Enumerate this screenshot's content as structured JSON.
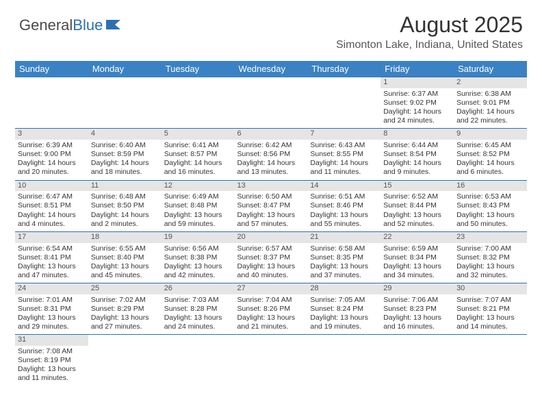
{
  "logo": {
    "text1": "General",
    "text2": "Blue"
  },
  "title": "August 2025",
  "location": "Simonton Lake, Indiana, United States",
  "colors": {
    "header_bg": "#3b82c4",
    "header_text": "#ffffff",
    "daynum_bg": "#e5e5e5",
    "border": "#2e6fb3",
    "body_text": "#333333"
  },
  "weekdays": [
    "Sunday",
    "Monday",
    "Tuesday",
    "Wednesday",
    "Thursday",
    "Friday",
    "Saturday"
  ],
  "weeks": [
    [
      null,
      null,
      null,
      null,
      null,
      {
        "n": "1",
        "sr": "Sunrise: 6:37 AM",
        "ss": "Sunset: 9:02 PM",
        "d1": "Daylight: 14 hours",
        "d2": "and 24 minutes."
      },
      {
        "n": "2",
        "sr": "Sunrise: 6:38 AM",
        "ss": "Sunset: 9:01 PM",
        "d1": "Daylight: 14 hours",
        "d2": "and 22 minutes."
      }
    ],
    [
      {
        "n": "3",
        "sr": "Sunrise: 6:39 AM",
        "ss": "Sunset: 9:00 PM",
        "d1": "Daylight: 14 hours",
        "d2": "and 20 minutes."
      },
      {
        "n": "4",
        "sr": "Sunrise: 6:40 AM",
        "ss": "Sunset: 8:59 PM",
        "d1": "Daylight: 14 hours",
        "d2": "and 18 minutes."
      },
      {
        "n": "5",
        "sr": "Sunrise: 6:41 AM",
        "ss": "Sunset: 8:57 PM",
        "d1": "Daylight: 14 hours",
        "d2": "and 16 minutes."
      },
      {
        "n": "6",
        "sr": "Sunrise: 6:42 AM",
        "ss": "Sunset: 8:56 PM",
        "d1": "Daylight: 14 hours",
        "d2": "and 13 minutes."
      },
      {
        "n": "7",
        "sr": "Sunrise: 6:43 AM",
        "ss": "Sunset: 8:55 PM",
        "d1": "Daylight: 14 hours",
        "d2": "and 11 minutes."
      },
      {
        "n": "8",
        "sr": "Sunrise: 6:44 AM",
        "ss": "Sunset: 8:54 PM",
        "d1": "Daylight: 14 hours",
        "d2": "and 9 minutes."
      },
      {
        "n": "9",
        "sr": "Sunrise: 6:45 AM",
        "ss": "Sunset: 8:52 PM",
        "d1": "Daylight: 14 hours",
        "d2": "and 6 minutes."
      }
    ],
    [
      {
        "n": "10",
        "sr": "Sunrise: 6:47 AM",
        "ss": "Sunset: 8:51 PM",
        "d1": "Daylight: 14 hours",
        "d2": "and 4 minutes."
      },
      {
        "n": "11",
        "sr": "Sunrise: 6:48 AM",
        "ss": "Sunset: 8:50 PM",
        "d1": "Daylight: 14 hours",
        "d2": "and 2 minutes."
      },
      {
        "n": "12",
        "sr": "Sunrise: 6:49 AM",
        "ss": "Sunset: 8:48 PM",
        "d1": "Daylight: 13 hours",
        "d2": "and 59 minutes."
      },
      {
        "n": "13",
        "sr": "Sunrise: 6:50 AM",
        "ss": "Sunset: 8:47 PM",
        "d1": "Daylight: 13 hours",
        "d2": "and 57 minutes."
      },
      {
        "n": "14",
        "sr": "Sunrise: 6:51 AM",
        "ss": "Sunset: 8:46 PM",
        "d1": "Daylight: 13 hours",
        "d2": "and 55 minutes."
      },
      {
        "n": "15",
        "sr": "Sunrise: 6:52 AM",
        "ss": "Sunset: 8:44 PM",
        "d1": "Daylight: 13 hours",
        "d2": "and 52 minutes."
      },
      {
        "n": "16",
        "sr": "Sunrise: 6:53 AM",
        "ss": "Sunset: 8:43 PM",
        "d1": "Daylight: 13 hours",
        "d2": "and 50 minutes."
      }
    ],
    [
      {
        "n": "17",
        "sr": "Sunrise: 6:54 AM",
        "ss": "Sunset: 8:41 PM",
        "d1": "Daylight: 13 hours",
        "d2": "and 47 minutes."
      },
      {
        "n": "18",
        "sr": "Sunrise: 6:55 AM",
        "ss": "Sunset: 8:40 PM",
        "d1": "Daylight: 13 hours",
        "d2": "and 45 minutes."
      },
      {
        "n": "19",
        "sr": "Sunrise: 6:56 AM",
        "ss": "Sunset: 8:38 PM",
        "d1": "Daylight: 13 hours",
        "d2": "and 42 minutes."
      },
      {
        "n": "20",
        "sr": "Sunrise: 6:57 AM",
        "ss": "Sunset: 8:37 PM",
        "d1": "Daylight: 13 hours",
        "d2": "and 40 minutes."
      },
      {
        "n": "21",
        "sr": "Sunrise: 6:58 AM",
        "ss": "Sunset: 8:35 PM",
        "d1": "Daylight: 13 hours",
        "d2": "and 37 minutes."
      },
      {
        "n": "22",
        "sr": "Sunrise: 6:59 AM",
        "ss": "Sunset: 8:34 PM",
        "d1": "Daylight: 13 hours",
        "d2": "and 34 minutes."
      },
      {
        "n": "23",
        "sr": "Sunrise: 7:00 AM",
        "ss": "Sunset: 8:32 PM",
        "d1": "Daylight: 13 hours",
        "d2": "and 32 minutes."
      }
    ],
    [
      {
        "n": "24",
        "sr": "Sunrise: 7:01 AM",
        "ss": "Sunset: 8:31 PM",
        "d1": "Daylight: 13 hours",
        "d2": "and 29 minutes."
      },
      {
        "n": "25",
        "sr": "Sunrise: 7:02 AM",
        "ss": "Sunset: 8:29 PM",
        "d1": "Daylight: 13 hours",
        "d2": "and 27 minutes."
      },
      {
        "n": "26",
        "sr": "Sunrise: 7:03 AM",
        "ss": "Sunset: 8:28 PM",
        "d1": "Daylight: 13 hours",
        "d2": "and 24 minutes."
      },
      {
        "n": "27",
        "sr": "Sunrise: 7:04 AM",
        "ss": "Sunset: 8:26 PM",
        "d1": "Daylight: 13 hours",
        "d2": "and 21 minutes."
      },
      {
        "n": "28",
        "sr": "Sunrise: 7:05 AM",
        "ss": "Sunset: 8:24 PM",
        "d1": "Daylight: 13 hours",
        "d2": "and 19 minutes."
      },
      {
        "n": "29",
        "sr": "Sunrise: 7:06 AM",
        "ss": "Sunset: 8:23 PM",
        "d1": "Daylight: 13 hours",
        "d2": "and 16 minutes."
      },
      {
        "n": "30",
        "sr": "Sunrise: 7:07 AM",
        "ss": "Sunset: 8:21 PM",
        "d1": "Daylight: 13 hours",
        "d2": "and 14 minutes."
      }
    ],
    [
      {
        "n": "31",
        "sr": "Sunrise: 7:08 AM",
        "ss": "Sunset: 8:19 PM",
        "d1": "Daylight: 13 hours",
        "d2": "and 11 minutes."
      },
      null,
      null,
      null,
      null,
      null,
      null
    ]
  ]
}
